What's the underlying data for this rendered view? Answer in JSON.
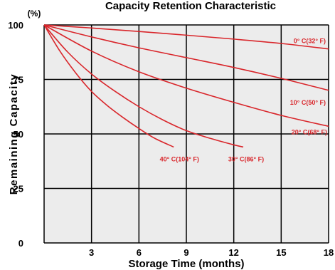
{
  "chart_data": {
    "type": "line",
    "title": "Capacity Retention Characteristic",
    "xlabel": "Storage Time (months)",
    "ylabel": "Remaining Capacity",
    "y_unit": "(%)",
    "xlim": [
      0,
      18
    ],
    "ylim": [
      0,
      100
    ],
    "x_ticks": [
      3,
      6,
      9,
      12,
      15,
      18
    ],
    "x_tick_labels": [
      "3",
      "6",
      "9",
      "12",
      "15",
      "18"
    ],
    "y_ticks": [
      0,
      25,
      50,
      75,
      100
    ],
    "y_tick_labels": [
      "0",
      "25",
      "50",
      "75",
      "100"
    ],
    "grid": true,
    "colors": {
      "line": "#d9262b",
      "plot_bg": "#ececec",
      "grid": "#000000"
    },
    "series": [
      {
        "name": "0°C(32°F)",
        "label": "0° C(32° F)",
        "x": [
          0,
          3,
          6,
          9,
          12,
          15,
          18
        ],
        "y": [
          100,
          98.6,
          97,
          95.3,
          93.5,
          91.5,
          89
        ]
      },
      {
        "name": "10°C(50°F)",
        "label": "10° C(50° F)",
        "x": [
          0,
          3,
          6,
          9,
          12,
          15,
          18
        ],
        "y": [
          100,
          94.5,
          89.5,
          85,
          80.5,
          75.5,
          70
        ]
      },
      {
        "name": "20°C(68°F)",
        "label": "20° C(68° F)",
        "x": [
          0,
          3,
          6,
          9,
          12,
          15,
          18
        ],
        "y": [
          100,
          88,
          78.5,
          71,
          64.5,
          58.5,
          53.5
        ]
      },
      {
        "name": "30°C(86°F)",
        "label": "30° C(86° F)",
        "x": [
          0,
          1.5,
          3,
          4.5,
          6,
          7.5,
          9,
          10.5,
          12,
          12.6
        ],
        "y": [
          100,
          87.5,
          77.5,
          69.5,
          62.5,
          56.5,
          51.5,
          48,
          45,
          44
        ]
      },
      {
        "name": "40°C(104°F)",
        "label": "40° C(104° F)",
        "x": [
          0,
          1,
          2,
          3,
          4,
          5,
          6,
          7,
          8.2
        ],
        "y": [
          100,
          88,
          78,
          69.5,
          63,
          57.5,
          52.5,
          48,
          44
        ]
      }
    ]
  }
}
